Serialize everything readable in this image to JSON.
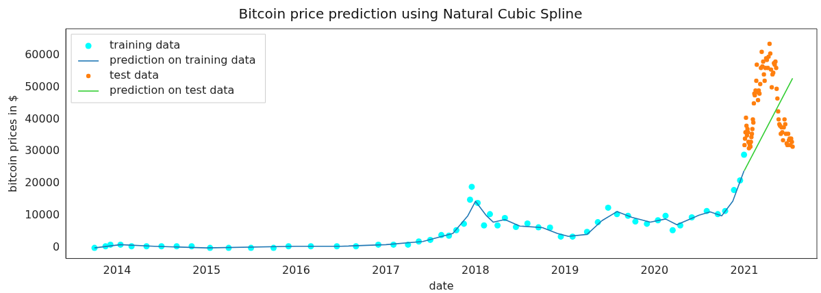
{
  "chart_data": {
    "type": "scatter",
    "title": "Bitcoin price prediction using Natural Cubic Spline",
    "xlabel": "date",
    "ylabel": "bitcoin prices in $",
    "xlim": [
      "2013-06-06",
      "2021-10-24"
    ],
    "ylim": [
      -3300,
      68200
    ],
    "xticks": [
      {
        "value": "2014-01-01",
        "label": "2014"
      },
      {
        "value": "2015-01-01",
        "label": "2015"
      },
      {
        "value": "2016-01-01",
        "label": "2016"
      },
      {
        "value": "2017-01-01",
        "label": "2017"
      },
      {
        "value": "2018-01-01",
        "label": "2018"
      },
      {
        "value": "2019-01-01",
        "label": "2019"
      },
      {
        "value": "2020-01-01",
        "label": "2020"
      },
      {
        "value": "2021-01-01",
        "label": "2021"
      }
    ],
    "yticks": [
      0,
      10000,
      20000,
      30000,
      40000,
      50000,
      60000
    ],
    "grid": false,
    "legend": "top left",
    "line_style": "solid",
    "series": [
      {
        "name": "training data",
        "marker": "circle",
        "color": "#00ffff",
        "x": [
          "2013-10-01",
          "2013-11-15",
          "2013-12-05",
          "2014-01-15",
          "2014-03-01",
          "2014-05-01",
          "2014-07-01",
          "2014-09-01",
          "2014-11-01",
          "2015-01-15",
          "2015-04-01",
          "2015-07-01",
          "2015-10-01",
          "2015-12-01",
          "2016-03-01",
          "2016-06-15",
          "2016-09-01",
          "2016-12-01",
          "2017-02-01",
          "2017-04-01",
          "2017-05-15",
          "2017-07-01",
          "2017-08-15",
          "2017-09-15",
          "2017-10-15",
          "2017-11-15",
          "2017-12-10",
          "2017-12-17",
          "2018-01-10",
          "2018-02-05",
          "2018-03-01",
          "2018-04-01",
          "2018-05-01",
          "2018-06-15",
          "2018-08-01",
          "2018-09-15",
          "2018-11-01",
          "2018-12-15",
          "2019-02-01",
          "2019-04-01",
          "2019-05-15",
          "2019-06-26",
          "2019-08-01",
          "2019-09-15",
          "2019-10-15",
          "2019-12-01",
          "2020-01-15",
          "2020-02-15",
          "2020-03-15",
          "2020-04-15",
          "2020-06-01",
          "2020-08-01",
          "2020-09-15",
          "2020-10-15",
          "2020-11-20",
          "2020-12-15",
          "2020-12-31"
        ],
        "values": [
          0,
          500,
          1000,
          1000,
          500,
          500,
          500,
          500,
          500,
          0,
          0,
          0,
          0,
          500,
          500,
          500,
          500,
          1000,
          1000,
          1000,
          2000,
          2500,
          4000,
          3800,
          5500,
          7500,
          15000,
          19000,
          14000,
          7000,
          10500,
          7000,
          9300,
          6500,
          7600,
          6400,
          6300,
          3500,
          3500,
          5000,
          8000,
          12500,
          10500,
          10000,
          8200,
          7500,
          8600,
          10000,
          5500,
          7000,
          9500,
          11500,
          10500,
          11500,
          18000,
          21000,
          29000
        ]
      },
      {
        "name": "prediction on training data",
        "type": "line",
        "marker": "none",
        "color": "#1f77b4",
        "x": [
          "2013-10-01",
          "2014-01-15",
          "2014-06-01",
          "2015-01-01",
          "2016-01-01",
          "2016-07-01",
          "2017-01-01",
          "2017-06-01",
          "2017-10-01",
          "2017-12-01",
          "2018-01-01",
          "2018-02-15",
          "2018-03-15",
          "2018-05-01",
          "2018-07-01",
          "2018-10-01",
          "2018-12-01",
          "2019-01-15",
          "2019-04-01",
          "2019-06-01",
          "2019-08-01",
          "2019-10-01",
          "2019-12-15",
          "2020-02-15",
          "2020-04-01",
          "2020-07-01",
          "2020-08-15",
          "2020-10-01",
          "2020-11-15",
          "2020-12-31"
        ],
        "values": [
          0,
          1000,
          500,
          0,
          500,
          500,
          1000,
          2000,
          4500,
          10000,
          14500,
          10000,
          8000,
          8800,
          6800,
          6300,
          4500,
          3600,
          4200,
          8500,
          11300,
          9500,
          8000,
          9000,
          7200,
          10200,
          11200,
          10000,
          14500,
          24000
        ]
      },
      {
        "name": "test data",
        "marker": "circle",
        "color": "#ff7f0e",
        "x": [
          "2021-01-02",
          "2021-01-04",
          "2021-01-06",
          "2021-01-08",
          "2021-01-10",
          "2021-01-12",
          "2021-01-14",
          "2021-01-16",
          "2021-01-18",
          "2021-01-20",
          "2021-01-22",
          "2021-01-24",
          "2021-01-26",
          "2021-01-28",
          "2021-01-30",
          "2021-02-01",
          "2021-02-03",
          "2021-02-05",
          "2021-02-07",
          "2021-02-09",
          "2021-02-11",
          "2021-02-13",
          "2021-02-16",
          "2021-02-19",
          "2021-02-21",
          "2021-02-23",
          "2021-02-26",
          "2021-03-01",
          "2021-03-04",
          "2021-03-07",
          "2021-03-10",
          "2021-03-13",
          "2021-03-16",
          "2021-03-19",
          "2021-03-22",
          "2021-03-25",
          "2021-03-28",
          "2021-03-31",
          "2021-04-03",
          "2021-04-07",
          "2021-04-10",
          "2021-04-14",
          "2021-04-17",
          "2021-04-20",
          "2021-04-23",
          "2021-04-26",
          "2021-04-29",
          "2021-05-02",
          "2021-05-05",
          "2021-05-08",
          "2021-05-11",
          "2021-05-13",
          "2021-05-16",
          "2021-05-19",
          "2021-05-21",
          "2021-05-24",
          "2021-05-27",
          "2021-05-30",
          "2021-06-02",
          "2021-06-05",
          "2021-06-08",
          "2021-06-11",
          "2021-06-14",
          "2021-06-17",
          "2021-06-20",
          "2021-06-23",
          "2021-06-26",
          "2021-06-29",
          "2021-07-02",
          "2021-07-05",
          "2021-07-08",
          "2021-07-11",
          "2021-07-14",
          "2021-07-17"
        ],
        "values": [
          32000,
          34000,
          36000,
          40500,
          38000,
          35000,
          37000,
          36000,
          33000,
          31000,
          32500,
          32000,
          31500,
          33000,
          34500,
          35500,
          37000,
          40000,
          39000,
          45000,
          48000,
          47500,
          49000,
          52000,
          57000,
          48500,
          46000,
          49000,
          48000,
          51000,
          56000,
          61000,
          56500,
          58000,
          54000,
          52000,
          56000,
          59000,
          58500,
          56000,
          59500,
          63500,
          60500,
          55500,
          50000,
          54000,
          54500,
          57500,
          57000,
          58000,
          56000,
          49500,
          46500,
          42500,
          40000,
          38500,
          38000,
          35500,
          37500,
          36000,
          33500,
          37500,
          40000,
          38500,
          35500,
          32500,
          32000,
          35500,
          33500,
          34000,
          32000,
          34000,
          33000,
          31500
        ]
      },
      {
        "name": "prediction on test data",
        "type": "line",
        "marker": "none",
        "color": "#32cd32",
        "x": [
          "2021-01-01",
          "2021-07-17"
        ],
        "values": [
          24000,
          52800
        ]
      }
    ]
  }
}
